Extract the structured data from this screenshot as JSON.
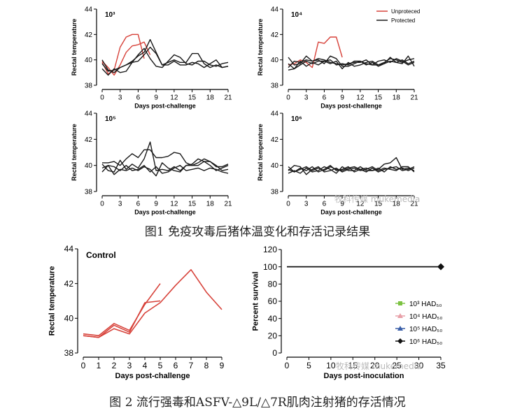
{
  "captions": {
    "fig1": "图1 免疫攻毒后猪体温变化和存活记录结果",
    "fig2": "图 2 流行强毒和ASFV-△9L/△7R肌肉注射猪的存活情况"
  },
  "watermarks": {
    "wm1": "牧科传媒 mukemedia",
    "wm2": "牧科传媒 mukemedia"
  },
  "colors": {
    "unprotected": "#d7423a",
    "protected": "#1a1a1a"
  },
  "chart_data": [
    {
      "type": "line",
      "panel_label": "10³",
      "xlabel": "Days post-challenge",
      "ylabel": "Rectal temperature",
      "xlim": [
        0,
        21
      ],
      "ylim": [
        38,
        44
      ],
      "xticks": [
        0,
        3,
        6,
        9,
        12,
        15,
        18,
        21
      ],
      "yticks": [
        38,
        40,
        42,
        44
      ],
      "series": [
        {
          "group": "unprotected",
          "x": [
            0,
            1,
            2,
            3,
            4,
            5,
            6,
            7
          ],
          "values": [
            39.8,
            38.9,
            39.2,
            41.0,
            41.8,
            42.0,
            42.0,
            40.1
          ]
        },
        {
          "group": "unprotected",
          "x": [
            0,
            1,
            2,
            3,
            4,
            5,
            6,
            7,
            8
          ],
          "values": [
            39.9,
            39.4,
            38.8,
            39.6,
            40.6,
            41.1,
            41.2,
            41.4,
            40.4
          ]
        },
        {
          "group": "protected",
          "x": [
            0,
            1,
            2,
            3,
            4,
            5,
            6,
            7,
            8,
            9,
            10,
            11,
            12,
            13,
            14,
            15,
            16,
            17,
            18,
            19,
            20,
            21
          ],
          "values": [
            40.0,
            39.2,
            39.0,
            39.4,
            39.6,
            39.9,
            40.3,
            40.6,
            41.6,
            40.6,
            39.6,
            39.6,
            39.9,
            39.6,
            39.6,
            39.8,
            39.7,
            39.4,
            39.7,
            40.0,
            39.4,
            39.5
          ]
        },
        {
          "group": "protected",
          "x": [
            0,
            1,
            2,
            3,
            4,
            5,
            6,
            7,
            8,
            9,
            10,
            11,
            12,
            13,
            14,
            15,
            16,
            17,
            18,
            19,
            20,
            21
          ],
          "values": [
            39.7,
            39.1,
            39.2,
            39.4,
            39.6,
            39.8,
            39.9,
            40.4,
            41.0,
            40.5,
            39.6,
            39.8,
            40.0,
            39.8,
            39.8,
            40.5,
            40.5,
            39.7,
            39.4,
            39.6,
            39.4,
            39.5
          ]
        },
        {
          "group": "protected",
          "x": [
            0,
            1,
            2,
            3,
            4,
            5,
            6,
            7,
            8,
            9,
            10,
            11,
            12,
            13,
            14,
            15,
            16,
            17,
            18,
            19,
            20,
            21
          ],
          "values": [
            39.3,
            38.8,
            39.3,
            39.0,
            39.1,
            39.8,
            40.4,
            40.9,
            40.1,
            39.5,
            39.4,
            39.9,
            40.4,
            40.2,
            39.7,
            39.6,
            39.9,
            39.9,
            39.6,
            39.5,
            39.7,
            39.8
          ]
        }
      ]
    },
    {
      "type": "line",
      "panel_label": "10⁴",
      "xlabel": "Days post-challenge",
      "ylabel": "Rectal temperature",
      "xlim": [
        0,
        21
      ],
      "ylim": [
        38,
        44
      ],
      "xticks": [
        0,
        3,
        6,
        9,
        12,
        15,
        18,
        21
      ],
      "yticks": [
        38,
        40,
        42,
        44
      ],
      "legend": {
        "placement": "top-right",
        "entries": [
          "Unproteced",
          "Protected"
        ]
      },
      "series": [
        {
          "group": "unprotected",
          "x": [
            0,
            1,
            2,
            3,
            4,
            5,
            6,
            7,
            8,
            9
          ],
          "values": [
            39.6,
            39.7,
            40.0,
            39.8,
            39.4,
            41.4,
            41.3,
            41.8,
            41.8,
            40.2
          ]
        },
        {
          "group": "protected",
          "x": [
            0,
            1,
            2,
            3,
            4,
            5,
            6,
            7,
            8,
            9,
            10,
            11,
            12,
            13,
            14,
            15,
            16,
            17,
            18,
            19,
            20,
            21
          ],
          "values": [
            40.2,
            39.6,
            39.7,
            40.3,
            39.9,
            40.0,
            39.7,
            40.3,
            40.1,
            39.5,
            39.5,
            39.7,
            39.9,
            39.6,
            39.8,
            39.5,
            39.7,
            40.2,
            39.8,
            39.7,
            40.3,
            39.5
          ]
        },
        {
          "group": "protected",
          "x": [
            0,
            1,
            2,
            3,
            4,
            5,
            6,
            7,
            8,
            9,
            10,
            11,
            12,
            13,
            14,
            15,
            16,
            17,
            18,
            19,
            20,
            21
          ],
          "values": [
            39.4,
            39.9,
            39.8,
            40.0,
            39.9,
            40.1,
            40.0,
            39.8,
            39.7,
            39.6,
            39.7,
            39.8,
            39.8,
            40.0,
            39.6,
            39.9,
            40.0,
            39.8,
            40.1,
            39.9,
            39.6,
            39.8
          ]
        },
        {
          "group": "protected",
          "x": [
            0,
            1,
            2,
            3,
            4,
            5,
            6,
            7,
            8,
            9,
            10,
            11,
            12,
            13,
            14,
            15,
            16,
            17,
            18,
            19,
            20,
            21
          ],
          "values": [
            39.7,
            39.3,
            39.9,
            39.5,
            39.8,
            39.6,
            39.9,
            39.7,
            39.9,
            39.3,
            39.8,
            39.5,
            39.6,
            39.8,
            39.9,
            39.6,
            39.7,
            39.9,
            39.8,
            40.0,
            39.7,
            39.9
          ]
        },
        {
          "group": "protected",
          "x": [
            0,
            1,
            2,
            3,
            4,
            5,
            6,
            7,
            8,
            9,
            10,
            11,
            12,
            13,
            14,
            15,
            16,
            17,
            18,
            19,
            20,
            21
          ],
          "values": [
            39.2,
            39.3,
            39.6,
            39.9,
            39.7,
            39.9,
            39.9,
            40.0,
            39.6,
            39.7,
            39.6,
            39.9,
            39.9,
            39.7,
            39.6,
            39.6,
            39.8,
            40.1,
            40.0,
            39.8,
            40.0,
            40.1
          ]
        }
      ]
    },
    {
      "type": "line",
      "panel_label": "10⁵",
      "xlabel": "Days post-challenge",
      "ylabel": "Rectal temperature",
      "xlim": [
        0,
        21
      ],
      "ylim": [
        38,
        44
      ],
      "xticks": [
        0,
        3,
        6,
        9,
        12,
        15,
        18,
        21
      ],
      "yticks": [
        38,
        40,
        42,
        44
      ],
      "series": [
        {
          "group": "protected",
          "x": [
            0,
            1,
            2,
            3,
            4,
            5,
            6,
            7,
            8,
            9,
            10,
            11,
            12,
            13,
            14,
            15,
            16,
            17,
            18,
            19,
            20,
            21
          ],
          "values": [
            40.2,
            40.2,
            40.3,
            40.0,
            40.5,
            40.9,
            40.6,
            41.2,
            41.2,
            40.6,
            40.6,
            40.7,
            41.0,
            40.9,
            40.2,
            40.0,
            40.0,
            40.3,
            40.3,
            39.9,
            39.9,
            40.1
          ]
        },
        {
          "group": "protected",
          "x": [
            0,
            1,
            2,
            3,
            4,
            5,
            6,
            7,
            8,
            9,
            10,
            11,
            12,
            13,
            14,
            15,
            16,
            17,
            18,
            19,
            20,
            21
          ],
          "values": [
            40.1,
            39.6,
            39.5,
            40.4,
            39.7,
            40.1,
            39.8,
            40.5,
            41.8,
            39.6,
            39.7,
            39.6,
            39.9,
            39.6,
            40.0,
            40.0,
            40.2,
            40.5,
            40.3,
            40.0,
            39.6,
            39.7
          ]
        },
        {
          "group": "protected",
          "x": [
            0,
            1,
            2,
            3,
            4,
            5,
            6,
            7,
            8,
            9,
            10,
            11,
            12,
            13,
            14,
            15,
            16,
            17,
            18,
            19,
            20,
            21
          ],
          "values": [
            39.8,
            40.0,
            39.3,
            39.7,
            39.6,
            39.8,
            39.6,
            39.9,
            39.7,
            39.2,
            40.2,
            39.8,
            39.6,
            39.5,
            40.0,
            40.1,
            40.5,
            40.3,
            40.0,
            39.6,
            39.8,
            40.0
          ]
        },
        {
          "group": "protected",
          "x": [
            0,
            1,
            2,
            3,
            4,
            5,
            6,
            7,
            8,
            9,
            10,
            11,
            12,
            13,
            14,
            15,
            16,
            17,
            18,
            19,
            20,
            21
          ],
          "values": [
            39.5,
            40.0,
            39.9,
            39.6,
            40.0,
            39.6,
            39.7,
            40.0,
            39.5,
            39.9,
            39.4,
            39.5,
            39.8,
            40.0,
            39.6,
            39.7,
            39.8,
            39.6,
            39.8,
            39.7,
            39.5,
            39.4
          ]
        }
      ]
    },
    {
      "type": "line",
      "panel_label": "10⁶",
      "xlabel": "Days post-challenge",
      "ylabel": "Rectal temperature",
      "xlim": [
        0,
        21
      ],
      "ylim": [
        38,
        44
      ],
      "xticks": [
        0,
        3,
        6,
        9,
        12,
        15,
        18,
        21
      ],
      "yticks": [
        38,
        40,
        42,
        44
      ],
      "series": [
        {
          "group": "protected",
          "x": [
            0,
            1,
            2,
            3,
            4,
            5,
            6,
            7,
            8,
            9,
            10,
            11,
            12,
            13,
            14,
            15,
            16,
            17,
            18,
            19,
            20,
            21
          ],
          "values": [
            39.9,
            39.5,
            39.8,
            39.6,
            39.9,
            39.5,
            39.7,
            40.0,
            39.6,
            39.7,
            39.9,
            39.5,
            39.7,
            39.8,
            39.6,
            39.7,
            40.1,
            40.2,
            40.6,
            39.7,
            39.8,
            39.6
          ]
        },
        {
          "group": "protected",
          "x": [
            0,
            1,
            2,
            3,
            4,
            5,
            6,
            7,
            8,
            9,
            10,
            11,
            12,
            13,
            14,
            15,
            16,
            17,
            18,
            19,
            20,
            21
          ],
          "values": [
            39.6,
            40.0,
            39.9,
            39.3,
            39.7,
            39.9,
            39.5,
            39.6,
            39.8,
            39.5,
            39.7,
            39.8,
            39.6,
            39.7,
            39.9,
            39.6,
            39.8,
            39.7,
            39.6,
            39.9,
            39.9,
            39.5
          ]
        },
        {
          "group": "protected",
          "x": [
            0,
            1,
            2,
            3,
            4,
            5,
            6,
            7,
            8,
            9,
            10,
            11,
            12,
            13,
            14,
            15,
            16,
            17,
            18,
            19,
            20,
            21
          ],
          "values": [
            39.4,
            39.6,
            39.4,
            39.8,
            39.5,
            39.6,
            39.9,
            39.7,
            39.4,
            39.9,
            39.6,
            39.6,
            39.9,
            39.6,
            39.6,
            39.8,
            39.5,
            39.9,
            39.7,
            39.8,
            39.6,
            39.8
          ]
        },
        {
          "group": "protected",
          "x": [
            0,
            1,
            2,
            3,
            4,
            5,
            6,
            7,
            8,
            9,
            10,
            11,
            12,
            13,
            14,
            15,
            16,
            17,
            18,
            19,
            20,
            21
          ],
          "values": [
            39.7,
            39.5,
            39.7,
            39.9,
            39.6,
            39.8,
            39.6,
            39.9,
            39.7,
            39.6,
            39.8,
            39.9,
            39.7,
            39.5,
            39.8,
            39.5,
            39.7,
            39.8,
            39.9,
            39.6,
            39.7,
            39.9
          ]
        }
      ]
    },
    {
      "type": "line",
      "panel_label": "Control",
      "xlabel": "Days post-challenge",
      "ylabel": "Rectal temperature",
      "xlim": [
        0,
        9
      ],
      "ylim": [
        38,
        44
      ],
      "xticks": [
        0,
        1,
        2,
        3,
        4,
        5,
        6,
        7,
        8,
        9
      ],
      "yticks": [
        38,
        40,
        42,
        44
      ],
      "series": [
        {
          "group": "unprotected",
          "x": [
            0,
            1,
            2,
            3,
            4,
            5
          ],
          "values": [
            39.1,
            39.0,
            39.7,
            39.3,
            40.8,
            42.0
          ]
        },
        {
          "group": "unprotected",
          "x": [
            0,
            1,
            2,
            3,
            4,
            5,
            6,
            7,
            8,
            9
          ],
          "values": [
            39.0,
            38.9,
            39.4,
            39.1,
            40.3,
            40.9,
            41.9,
            42.8,
            41.5,
            40.5
          ]
        },
        {
          "group": "unprotected",
          "x": [
            0,
            1,
            2,
            3,
            4,
            5
          ],
          "values": [
            39.0,
            38.9,
            39.6,
            39.2,
            40.9,
            41.0
          ]
        }
      ]
    },
    {
      "type": "line",
      "xlabel": "Days post-inoculation",
      "ylabel": "Percent survival",
      "xlim": [
        0,
        35
      ],
      "ylim": [
        0,
        120
      ],
      "xticks": [
        0,
        5,
        10,
        15,
        20,
        25,
        30,
        35
      ],
      "yticks": [
        0,
        20,
        40,
        60,
        80,
        100,
        120
      ],
      "legend": {
        "placement": "bottom-right"
      },
      "series": [
        {
          "name": "10³ HAD₅₀",
          "color": "#7cc242",
          "marker": "square",
          "x": [
            0,
            35
          ],
          "values": [
            100,
            100
          ]
        },
        {
          "name": "10⁴ HAD₅₀",
          "color": "#e8a0a8",
          "marker": "triangle-up",
          "x": [
            0,
            35
          ],
          "values": [
            100,
            100
          ]
        },
        {
          "name": "10⁵ HAD₅₀",
          "color": "#3a5fa8",
          "marker": "triangle-up",
          "x": [
            0,
            35
          ],
          "values": [
            100,
            100
          ]
        },
        {
          "name": "10⁶ HAD₅₀",
          "color": "#111111",
          "marker": "diamond",
          "x": [
            0,
            35
          ],
          "values": [
            100,
            100
          ]
        }
      ]
    }
  ]
}
